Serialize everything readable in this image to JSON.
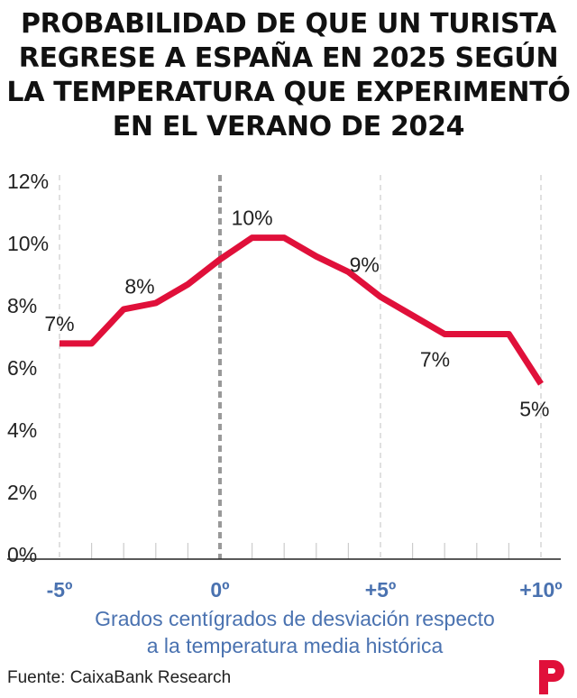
{
  "title_lines": [
    "PROBABILIDAD DE QUE UN TURISTA",
    "REGRESE A ESPAÑA EN 2025 SEGÚN",
    "LA TEMPERATURA QUE EXPERIMENTÓ",
    "EN EL VERANO DE 2024"
  ],
  "source": "Fuente: CaixaBank Research",
  "logo_letter": "P",
  "colors": {
    "line": "#e0103a",
    "axis_label": "#4a72b0",
    "grid": "#cccccc",
    "zero_line": "#999999",
    "tick_text": "#222222",
    "logo": "#e0103a"
  },
  "chart_data": {
    "type": "line",
    "title": "PROBABILIDAD DE QUE UN TURISTA REGRESE A ESPAÑA EN 2025 SEGÚN LA TEMPERATURA QUE EXPERIMENTÓ EN EL VERANO DE 2024",
    "xlabel_lines": [
      "Grados centígrados de desviación respecto",
      "a la temperatura media histórica"
    ],
    "ylabel": "",
    "xlim": [
      -5,
      10
    ],
    "ylim": [
      0,
      12
    ],
    "x_ticks": [
      -5,
      0,
      5,
      10
    ],
    "x_tick_labels": [
      "-5º",
      "0º",
      "+5º",
      "+10º"
    ],
    "y_ticks": [
      0,
      2,
      4,
      6,
      8,
      10,
      12
    ],
    "y_tick_labels": [
      "0%",
      "2%",
      "4%",
      "6%",
      "8%",
      "10%",
      "12%"
    ],
    "grid": "vertical dashed at every 1º, highlighted at 0º",
    "x": [
      -5,
      -4,
      -3,
      -2,
      -1,
      0,
      1,
      2,
      3,
      4,
      5,
      6,
      7,
      8,
      9,
      10
    ],
    "values": [
      6.7,
      6.7,
      7.8,
      8.0,
      8.6,
      9.4,
      10.1,
      10.1,
      9.5,
      9.0,
      8.2,
      7.6,
      7.0,
      7.0,
      7.0,
      5.4
    ],
    "annotations": [
      {
        "x": -5,
        "y": 6.7,
        "text": "7%",
        "pos": "above"
      },
      {
        "x": -2.5,
        "y": 7.9,
        "text": "8%",
        "pos": "above"
      },
      {
        "x": 1,
        "y": 10.1,
        "text": "10%",
        "pos": "above"
      },
      {
        "x": 4.5,
        "y": 8.6,
        "text": "9%",
        "pos": "above"
      },
      {
        "x": 6.7,
        "y": 7.0,
        "text": "7%",
        "pos": "below"
      },
      {
        "x": 9.8,
        "y": 5.4,
        "text": "5%",
        "pos": "below"
      }
    ]
  }
}
